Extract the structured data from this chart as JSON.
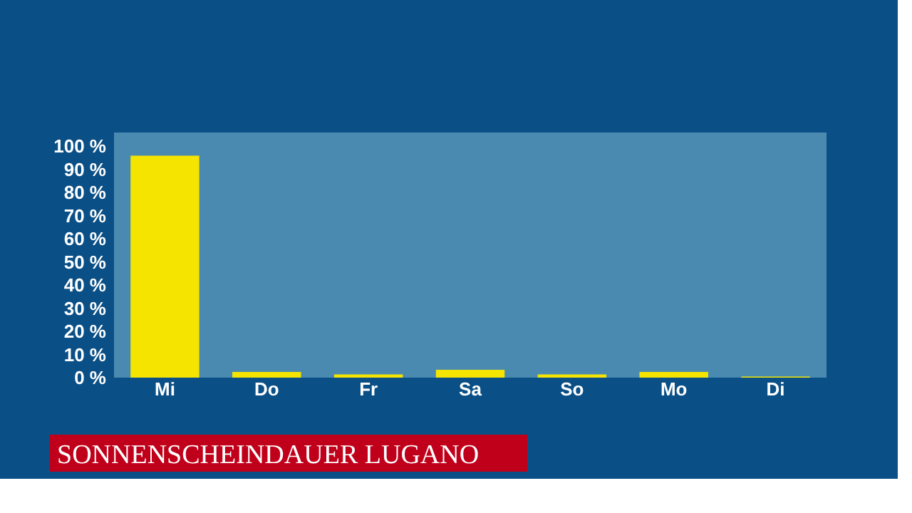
{
  "chart_data": {
    "type": "bar",
    "title": "SONNENSCHEINDAUER LUGANO",
    "categories": [
      "Mi",
      "Do",
      "Fr",
      "Sa",
      "So",
      "Mo",
      "Di"
    ],
    "values": [
      96,
      2.5,
      1.4,
      3.4,
      1.4,
      2.5,
      0.5
    ],
    "color": "#f5e400",
    "ylim": [
      0,
      106
    ],
    "yticks": [
      {
        "value": 0,
        "label": "0 %"
      },
      {
        "value": 10,
        "label": "10 %"
      },
      {
        "value": 20,
        "label": "20 %"
      },
      {
        "value": 30,
        "label": "30 %"
      },
      {
        "value": 40,
        "label": "40 %"
      },
      {
        "value": 50,
        "label": "50 %"
      },
      {
        "value": 60,
        "label": "60 %"
      },
      {
        "value": 70,
        "label": "70 %"
      },
      {
        "value": 80,
        "label": "80 %"
      },
      {
        "value": 90,
        "label": "90 %"
      },
      {
        "value": 100,
        "label": "100 %"
      }
    ],
    "grid": false
  }
}
